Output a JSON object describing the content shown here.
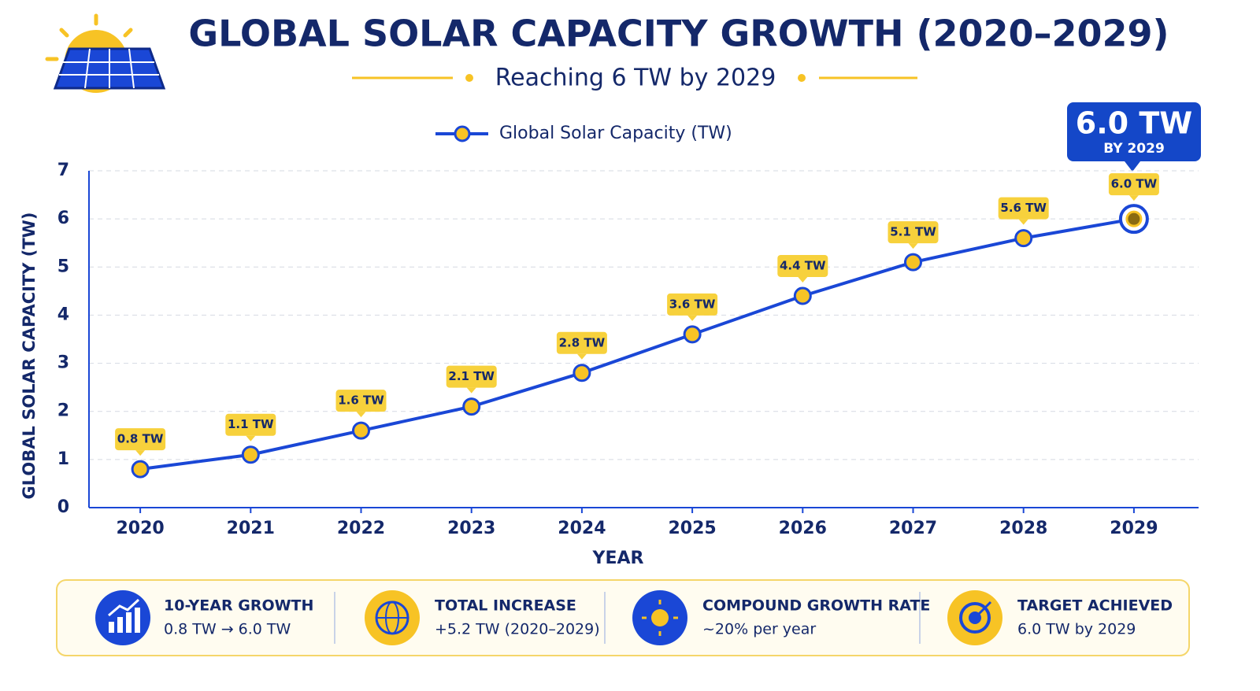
{
  "chart_data": {
    "type": "line",
    "title": "GLOBAL SOLAR CAPACITY GROWTH (2020–2029)",
    "subtitle": "Reaching 6 TW by 2029",
    "x_label": "YEAR",
    "y_label": "GLOBAL SOLAR CAPACITY (TW)",
    "categories": [
      "2020",
      "2021",
      "2022",
      "2023",
      "2024",
      "2025",
      "2026",
      "2027",
      "2028",
      "2029"
    ],
    "series": [
      {
        "name": "Global Solar Capacity (TW)",
        "color": "#1a47d6",
        "values": [
          0.8,
          1.1,
          1.6,
          2.1,
          2.8,
          3.6,
          4.4,
          5.1,
          5.6,
          6.0
        ],
        "value_labels": [
          "0.8 TW",
          "1.1 TW",
          "1.6 TW",
          "2.1 TW",
          "2.8 TW",
          "3.6 TW",
          "4.4 TW",
          "5.1 TW",
          "5.6 TW",
          "6.0 TW"
        ]
      }
    ],
    "ylim": [
      0,
      7
    ],
    "yticks": [
      0,
      1,
      2,
      3,
      4,
      5,
      6,
      7
    ],
    "grid": true,
    "legend": "top",
    "callout": {
      "text": "6.0 TW",
      "subtext": "BY 2029"
    }
  },
  "summary": [
    {
      "title": "10-YEAR GROWTH",
      "text": "0.8 TW → 6.0 TW"
    },
    {
      "title": "TOTAL INCREASE",
      "text": "+5.2 TW (2020–2029)"
    },
    {
      "title": "COMPOUND GROWTH RATE",
      "text": "~20% per year"
    },
    {
      "title": "TARGET ACHIEVED",
      "text": "6.0 TW by 2029"
    }
  ]
}
